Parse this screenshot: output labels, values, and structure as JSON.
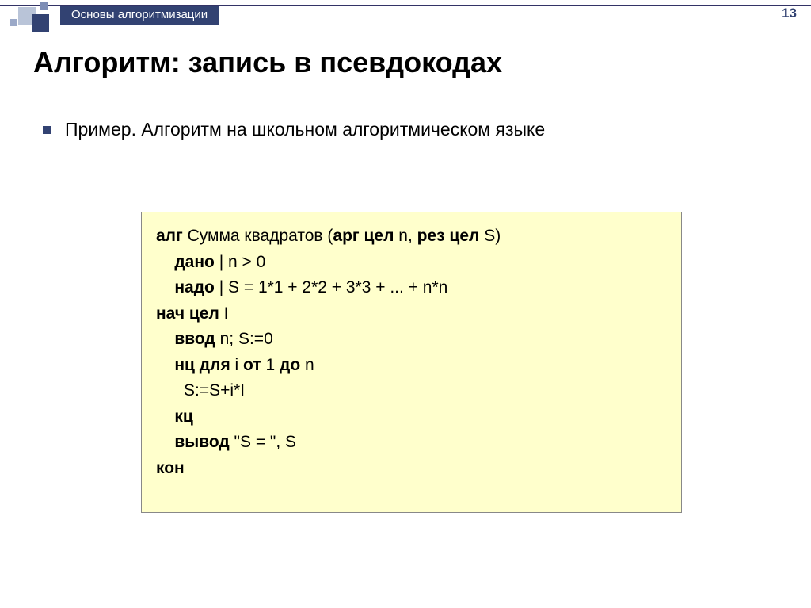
{
  "header": {
    "breadcrumb": "Основы алгоритмизации",
    "page_number": "13"
  },
  "title": "Алгоритм: запись в псевдокодах",
  "bullet": {
    "text": "Пример. Алгоритм на школьном алгоритмическом языке"
  },
  "code": {
    "background_color": "#ffffcc",
    "border_color": "#888888",
    "font_size": 21,
    "lines": [
      {
        "segments": [
          {
            "t": "алг",
            "b": true
          },
          {
            "t": " Сумма квадратов (",
            "b": false
          },
          {
            "t": "арг цел",
            "b": true
          },
          {
            "t": " n, ",
            "b": false
          },
          {
            "t": "рез цел",
            "b": true
          },
          {
            "t": " S)",
            "b": false
          }
        ]
      },
      {
        "segments": [
          {
            "t": "    ",
            "b": false
          },
          {
            "t": "дано",
            "b": true
          },
          {
            "t": " | n > 0",
            "b": false
          }
        ]
      },
      {
        "segments": [
          {
            "t": "    ",
            "b": false
          },
          {
            "t": "надо",
            "b": true
          },
          {
            "t": " | S = 1*1 + 2*2 + 3*3 + ... + n*n",
            "b": false
          }
        ]
      },
      {
        "segments": [
          {
            "t": "нач цел",
            "b": true
          },
          {
            "t": " I",
            "b": false
          }
        ]
      },
      {
        "segments": [
          {
            "t": "    ",
            "b": false
          },
          {
            "t": "ввод",
            "b": true
          },
          {
            "t": " n; S:=0",
            "b": false
          }
        ]
      },
      {
        "segments": [
          {
            "t": "    ",
            "b": false
          },
          {
            "t": "нц для",
            "b": true
          },
          {
            "t": " i ",
            "b": false
          },
          {
            "t": "от",
            "b": true
          },
          {
            "t": " 1 ",
            "b": false
          },
          {
            "t": "до",
            "b": true
          },
          {
            "t": " n",
            "b": false
          }
        ]
      },
      {
        "segments": [
          {
            "t": "      S:=S+i*I",
            "b": false
          }
        ]
      },
      {
        "segments": [
          {
            "t": "    ",
            "b": false
          },
          {
            "t": "кц",
            "b": true
          }
        ]
      },
      {
        "segments": [
          {
            "t": "    ",
            "b": false
          },
          {
            "t": "вывод",
            "b": true
          },
          {
            "t": " \"S = \", S",
            "b": false
          }
        ]
      },
      {
        "segments": [
          {
            "t": "кон",
            "b": true
          }
        ]
      }
    ]
  },
  "colors": {
    "accent": "#324272",
    "bg": "#ffffff"
  }
}
